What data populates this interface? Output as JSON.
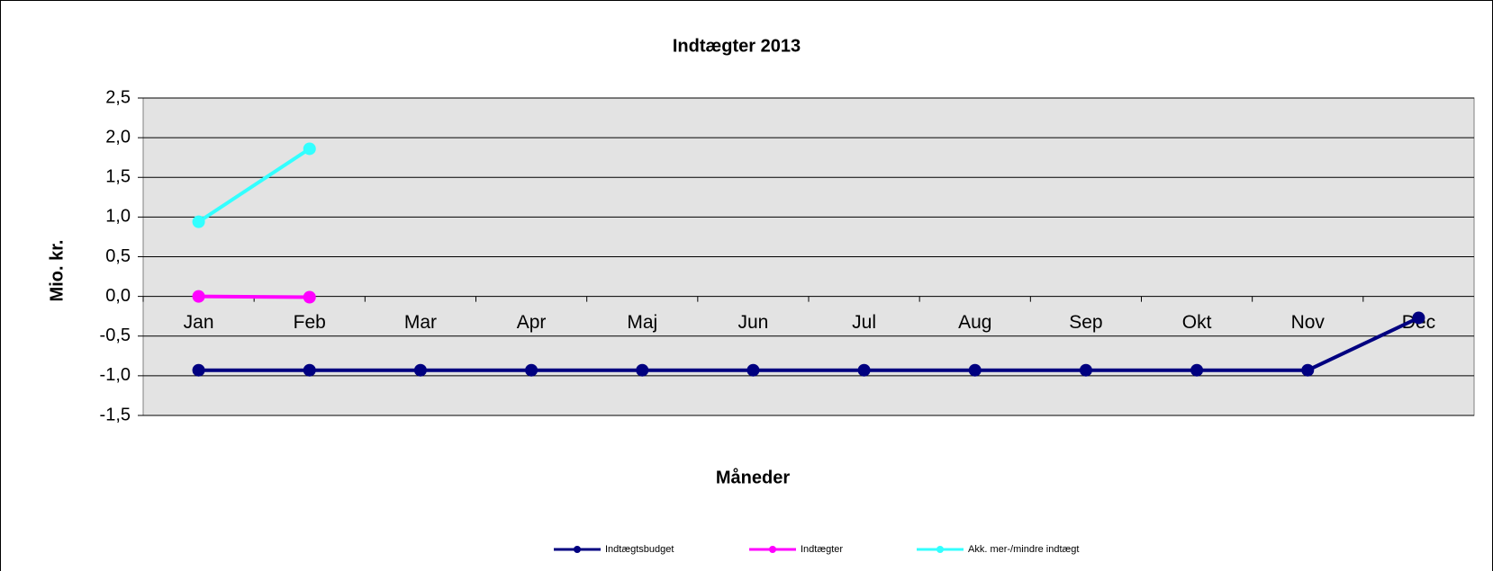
{
  "chart_data": {
    "type": "line",
    "title": "Indtægter 2013",
    "x_label": "Måneder",
    "y_label": "Mio. kr.",
    "categories": [
      "Jan",
      "Feb",
      "Mar",
      "Apr",
      "Maj",
      "Jun",
      "Jul",
      "Aug",
      "Sep",
      "Okt",
      "Nov",
      "Dec"
    ],
    "series": [
      {
        "name": "Indtægtsbudget",
        "color": "#000080",
        "values": [
          -0.93,
          -0.93,
          -0.93,
          -0.93,
          -0.93,
          -0.93,
          -0.93,
          -0.93,
          -0.93,
          -0.93,
          -0.93,
          -0.27
        ]
      },
      {
        "name": "Indtægter",
        "color": "#ff00ff",
        "values": [
          0.0,
          -0.01,
          null,
          null,
          null,
          null,
          null,
          null,
          null,
          null,
          null,
          null
        ]
      },
      {
        "name": "Akk. mer-/mindre indtægt",
        "color": "#33ffff",
        "values": [
          0.94,
          1.86,
          null,
          null,
          null,
          null,
          null,
          null,
          null,
          null,
          null,
          null
        ]
      }
    ],
    "ylim": [
      -1.5,
      2.5
    ],
    "yticks": [
      {
        "value": -1.5,
        "label": "-1,5"
      },
      {
        "value": -1,
        "label": "-1,0"
      },
      {
        "value": -0.5,
        "label": "-0,5"
      },
      {
        "value": 0,
        "label": "0,0"
      },
      {
        "value": 0.5,
        "label": "0,5"
      },
      {
        "value": 1,
        "label": "1,0"
      },
      {
        "value": 1.5,
        "label": "1,5"
      },
      {
        "value": 2,
        "label": "2,0"
      },
      {
        "value": 2.5,
        "label": "2,5"
      }
    ],
    "grid": true,
    "legend": "bottom"
  }
}
